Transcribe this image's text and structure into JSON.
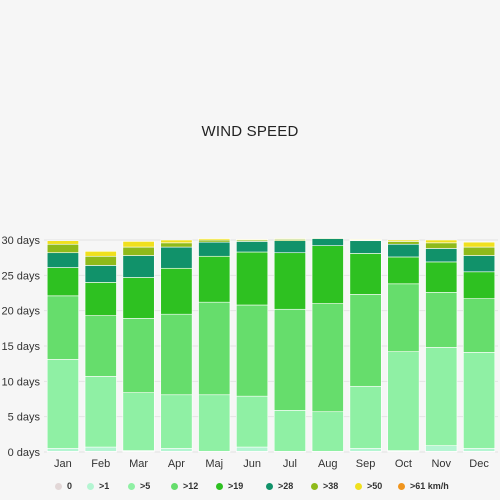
{
  "chart_data": {
    "type": "bar",
    "stacked": true,
    "title": "WIND SPEED",
    "categories": [
      "Jan",
      "Feb",
      "Mar",
      "Apr",
      "Maj",
      "Jun",
      "Jul",
      "Aug",
      "Sep",
      "Oct",
      "Nov",
      "Dec"
    ],
    "y_ticks": [
      "0 days",
      "5 days",
      "10 days",
      "15 days",
      "20 days",
      "25 days",
      "30 days"
    ],
    "ylim": [
      0,
      30
    ],
    "grid": true,
    "legend_position": "bottom",
    "series": [
      {
        "name": "0",
        "color": "#e2d7d7",
        "values": [
          0.1,
          0.1,
          0.1,
          0.1,
          0.1,
          0.1,
          0.1,
          0.1,
          0.1,
          0.1,
          0.1,
          0.1
        ]
      },
      {
        "name": ">1",
        "color": "#b4f5d2",
        "values": [
          0.4,
          0.6,
          0.1,
          0.4,
          0.0,
          0.6,
          0.0,
          0.0,
          0.4,
          0.1,
          0.8,
          0.4
        ]
      },
      {
        "name": ">5",
        "color": "#8ff0a4",
        "values": [
          12.6,
          10.0,
          8.2,
          7.6,
          8.0,
          7.2,
          5.8,
          5.6,
          8.8,
          14.0,
          13.9,
          13.6
        ]
      },
      {
        "name": ">12",
        "color": "#66dd6c",
        "values": [
          9.0,
          8.6,
          10.5,
          11.4,
          13.1,
          12.9,
          14.3,
          15.3,
          13.0,
          9.6,
          7.8,
          7.6
        ]
      },
      {
        "name": ">19",
        "color": "#2ec121",
        "values": [
          4.0,
          4.7,
          5.8,
          6.5,
          6.5,
          7.5,
          8.0,
          8.2,
          5.8,
          3.8,
          4.3,
          3.8
        ]
      },
      {
        "name": ">28",
        "color": "#11926a",
        "values": [
          2.1,
          2.4,
          3.1,
          3.0,
          2.0,
          1.5,
          1.7,
          1.0,
          1.8,
          1.8,
          1.9,
          2.3
        ]
      },
      {
        "name": ">38",
        "color": "#8fba1a",
        "values": [
          1.2,
          1.3,
          1.2,
          0.6,
          0.3,
          0.2,
          0.2,
          0.1,
          0.1,
          0.4,
          0.8,
          1.2
        ]
      },
      {
        "name": ">50",
        "color": "#f0e01e",
        "values": [
          0.5,
          0.7,
          0.8,
          0.4,
          0.2,
          0.1,
          0.1,
          0.0,
          0.1,
          0.2,
          0.4,
          0.7
        ]
      },
      {
        "name": ">61 km/h",
        "color": "#f0951e",
        "values": [
          0.0,
          0.0,
          0.0,
          0.0,
          0.0,
          0.0,
          0.0,
          0.0,
          0.0,
          0.0,
          0.0,
          0.0
        ]
      }
    ]
  }
}
